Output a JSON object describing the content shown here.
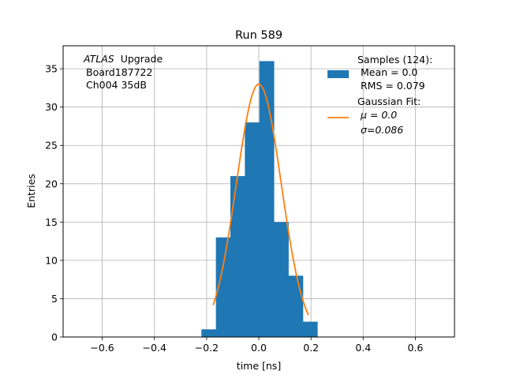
{
  "chart_data": {
    "type": "bar",
    "title": "Run 589",
    "xlabel": "time [ns]",
    "ylabel": "Entries",
    "xlim": [
      -0.75,
      0.75
    ],
    "ylim": [
      0,
      38
    ],
    "grid": true,
    "x_ticks": [
      -0.6,
      -0.4,
      -0.2,
      0.0,
      0.2,
      0.4,
      0.6
    ],
    "x_tick_labels": [
      "−0.6",
      "−0.4",
      "−0.2",
      "0.0",
      "0.2",
      "0.4",
      "0.6"
    ],
    "y_ticks": [
      0,
      5,
      10,
      15,
      20,
      25,
      30,
      35
    ],
    "y_tick_labels": [
      "0",
      "5",
      "10",
      "15",
      "20",
      "25",
      "30",
      "35"
    ],
    "histogram": {
      "bin_edges": [
        -0.22,
        -0.165,
        -0.11,
        -0.055,
        0.0,
        0.055,
        0.11,
        0.165,
        0.22
      ],
      "bin_edges_fine": [
        -0.22,
        -0.1645,
        -0.1089,
        -0.0534,
        0.0022,
        0.0578,
        0.1133,
        0.1689,
        0.2244
      ],
      "counts": [
        1,
        13,
        21,
        28,
        36,
        15,
        8,
        2
      ],
      "color": "#1f77b4"
    },
    "fit": {
      "mu": 0.0,
      "sigma": 0.086,
      "amplitude": 33.0,
      "x_range": [
        -0.175,
        0.19
      ],
      "color": "#ff7f0e"
    },
    "annotation_lines": [
      "ATLAS",
      "Upgrade",
      "Board187722",
      "Ch004 35dB"
    ],
    "legend": {
      "placement": "top-right",
      "entries": [
        {
          "lines": [
            "Samples (124):",
            "Mean = 0.0",
            "RMS = 0.079"
          ],
          "kind": "patch",
          "color": "#1f77b4"
        },
        {
          "lines": [
            "Gaussian Fit:",
            "μ = 0.0",
            "σ=0.086"
          ],
          "kind": "line",
          "color": "#ff7f0e"
        }
      ]
    }
  }
}
